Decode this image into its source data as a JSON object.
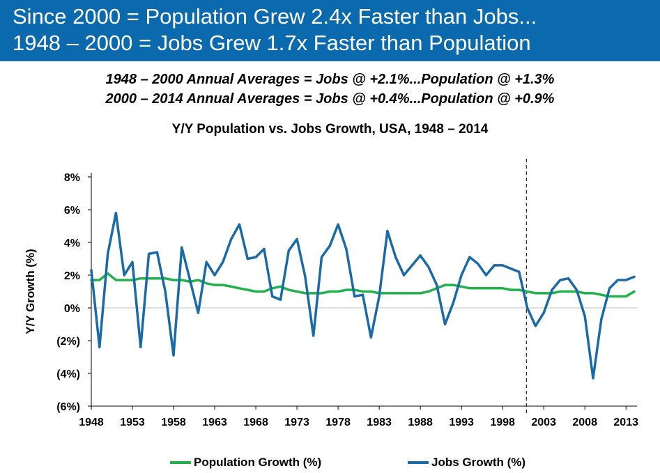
{
  "header": {
    "line1": "Since 2000 = Population Grew 2.4x Faster than Jobs...",
    "line2": "1948 – 2000 = Jobs Grew 1.7x Faster than Population"
  },
  "subtitles": {
    "line1": "1948 – 2000 Annual Averages = Jobs @ +2.1%...Population @ +1.3%",
    "line2": "2000 – 2014 Annual Averages = Jobs @ +0.4%...Population @ +0.9%"
  },
  "colors": {
    "banner": "#0a6aad",
    "population": "#22b14c",
    "jobs": "#1a6aa5",
    "axis": "#000000",
    "divider": "#333333"
  },
  "chart_data": {
    "type": "line",
    "title": "Y/Y Population vs. Jobs Growth, USA, 1948 – 2014",
    "xlabel": "",
    "ylabel": "Y/Y Growth (%)",
    "ylim": [
      -6,
      8
    ],
    "yticks": [
      -6,
      -4,
      -2,
      0,
      2,
      4,
      6,
      8
    ],
    "ytick_labels": [
      "(6%)",
      "(4%)",
      "(2%)",
      "0%",
      "2%",
      "4%",
      "6%",
      "8%"
    ],
    "xticks": [
      1948,
      1953,
      1958,
      1963,
      1968,
      1973,
      1978,
      1983,
      1988,
      1993,
      1998,
      2003,
      2008,
      2013
    ],
    "xlim": [
      1948,
      2014
    ],
    "grid": false,
    "legend_position": "bottom",
    "divider_year": 2000,
    "x": [
      1948,
      1949,
      1950,
      1951,
      1952,
      1953,
      1954,
      1955,
      1956,
      1957,
      1958,
      1959,
      1960,
      1961,
      1962,
      1963,
      1964,
      1965,
      1966,
      1967,
      1968,
      1969,
      1970,
      1971,
      1972,
      1973,
      1974,
      1975,
      1976,
      1977,
      1978,
      1979,
      1980,
      1981,
      1982,
      1983,
      1984,
      1985,
      1986,
      1987,
      1988,
      1989,
      1990,
      1991,
      1992,
      1993,
      1994,
      1995,
      1996,
      1997,
      1998,
      1999,
      2000,
      2001,
      2002,
      2003,
      2004,
      2005,
      2006,
      2007,
      2008,
      2009,
      2010,
      2011,
      2012,
      2013,
      2014
    ],
    "series": [
      {
        "name": "Population Growth (%)",
        "values": [
          1.7,
          1.7,
          2.1,
          1.7,
          1.7,
          1.7,
          1.8,
          1.8,
          1.8,
          1.8,
          1.7,
          1.7,
          1.6,
          1.7,
          1.5,
          1.4,
          1.4,
          1.3,
          1.2,
          1.1,
          1.0,
          1.0,
          1.2,
          1.3,
          1.1,
          1.0,
          0.9,
          0.9,
          0.9,
          1.0,
          1.0,
          1.1,
          1.1,
          1.0,
          1.0,
          0.9,
          0.9,
          0.9,
          0.9,
          0.9,
          0.9,
          1.0,
          1.2,
          1.4,
          1.4,
          1.3,
          1.2,
          1.2,
          1.2,
          1.2,
          1.2,
          1.1,
          1.1,
          1.0,
          0.9,
          0.9,
          0.9,
          1.0,
          1.0,
          1.0,
          0.9,
          0.9,
          0.8,
          0.7,
          0.7,
          0.7,
          1.0
        ]
      },
      {
        "name": "Jobs Growth (%)",
        "values": [
          2.3,
          -2.4,
          3.3,
          5.8,
          2.0,
          2.8,
          -2.4,
          3.3,
          3.4,
          1.0,
          -2.9,
          3.7,
          1.7,
          -0.3,
          2.8,
          2.0,
          2.8,
          4.2,
          5.1,
          3.0,
          3.1,
          3.6,
          0.7,
          0.5,
          3.5,
          4.2,
          1.9,
          -1.7,
          3.1,
          3.8,
          5.1,
          3.6,
          0.7,
          0.8,
          -1.8,
          0.7,
          4.7,
          3.1,
          2.0,
          2.6,
          3.2,
          2.5,
          1.4,
          -1.0,
          0.3,
          2.0,
          3.1,
          2.7,
          2.0,
          2.6,
          2.6,
          2.4,
          2.2,
          0.0,
          -1.1,
          -0.3,
          1.1,
          1.7,
          1.8,
          1.1,
          -0.5,
          -4.3,
          -0.7,
          1.2,
          1.7,
          1.7,
          1.9
        ]
      }
    ]
  }
}
